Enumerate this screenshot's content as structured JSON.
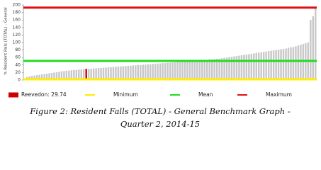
{
  "chart_data": {
    "type": "bar",
    "ylabel": "% Resident Falls (TOTAL) - General",
    "values": [
      2,
      8,
      10,
      11,
      12,
      13,
      14,
      15,
      16,
      17,
      18,
      19,
      20,
      21,
      22,
      23,
      24,
      25,
      25,
      26,
      27,
      27,
      28,
      28,
      29,
      29.74,
      30,
      30,
      31,
      31,
      32,
      32,
      33,
      33,
      34,
      34,
      35,
      35,
      36,
      36,
      37,
      37,
      38,
      38,
      39,
      39,
      40,
      40,
      41,
      41,
      42,
      42,
      43,
      43,
      44,
      44,
      45,
      45,
      46,
      46,
      47,
      47,
      48,
      48,
      49,
      49,
      50,
      50,
      51,
      51,
      52,
      52,
      53,
      53,
      54,
      55,
      55,
      56,
      57,
      57,
      58,
      59,
      60,
      61,
      62,
      63,
      64,
      65,
      66,
      67,
      68,
      69,
      70,
      71,
      72,
      73,
      74,
      75,
      76,
      77,
      78,
      79,
      80,
      81,
      82,
      83,
      84,
      86,
      87,
      88,
      90,
      92,
      94,
      96,
      98,
      100,
      160,
      170,
      193
    ],
    "color": "#c8c8c8",
    "highlight": {
      "index": 25,
      "label": "Reevedon: 29.74",
      "color": "#cc0000"
    },
    "lines": [
      {
        "name": "Minimum",
        "value": 2,
        "color": "#ffee00"
      },
      {
        "name": "Mean",
        "value": 51,
        "color": "#22dd22"
      },
      {
        "name": "Maximum",
        "value": 193,
        "color": "#e01010"
      }
    ],
    "ylim": [
      0,
      200
    ],
    "yticks": [
      0,
      20,
      40,
      60,
      80,
      100,
      120,
      140,
      160,
      180,
      200
    ],
    "caption": [
      "Figure 2: Resident Falls (TOTAL) - General Benchmark Graph -",
      "Quarter 2, 2014-15"
    ]
  }
}
